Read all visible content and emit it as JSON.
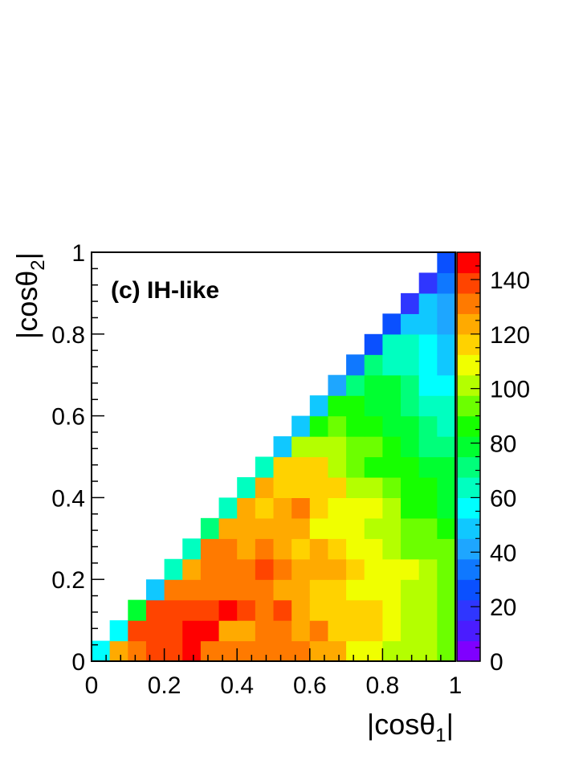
{
  "chart_data": {
    "type": "heatmap",
    "title": "",
    "annotation": "(c) IH-like",
    "xlabel": "|cosθ1|",
    "ylabel": "|cosθ2|",
    "xlim": [
      0,
      1
    ],
    "ylim": [
      0,
      1
    ],
    "x_ticks": [
      "0",
      "0.2",
      "0.4",
      "0.6",
      "0.8",
      "1"
    ],
    "y_ticks": [
      "0",
      "0.2",
      "0.4",
      "0.6",
      "0.8",
      "1"
    ],
    "bins": 20,
    "colorbar": {
      "range": [
        0,
        150
      ],
      "ticks": [
        "0",
        "20",
        "40",
        "60",
        "80",
        "100",
        "120",
        "140"
      ],
      "colors": [
        "#7f00ff",
        "#4a1cff",
        "#2f36ff",
        "#0a50ff",
        "#0f78ff",
        "#1ea6ff",
        "#10c8ff",
        "#00ffff",
        "#00ffc0",
        "#00ff7a",
        "#00ff30",
        "#16ff00",
        "#6cff00",
        "#b4ff00",
        "#f0ff00",
        "#ffd200",
        "#ffaa00",
        "#ff7a00",
        "#ff4400",
        "#ff0000"
      ]
    },
    "rows": [
      [
        55,
        120,
        132,
        140,
        138,
        143,
        132,
        130,
        128,
        130,
        130,
        128,
        123,
        120,
        110,
        110,
        104,
        102,
        98,
        94
      ],
      [
        null,
        58,
        140,
        140,
        135,
        144,
        143,
        125,
        126,
        128,
        128,
        122,
        130,
        118,
        117,
        116,
        110,
        104,
        100,
        94
      ],
      [
        null,
        null,
        75,
        138,
        140,
        135,
        142,
        143,
        141,
        131,
        135,
        125,
        118,
        116,
        116,
        113,
        112,
        102,
        100,
        94
      ],
      [
        null,
        null,
        null,
        52,
        132,
        132,
        133,
        132,
        134,
        130,
        126,
        122,
        114,
        114,
        112,
        112,
        110,
        103,
        100,
        96
      ],
      [
        null,
        null,
        null,
        null,
        66,
        122,
        128,
        130,
        134,
        140,
        130,
        125,
        124,
        122,
        114,
        110,
        110,
        106,
        100,
        94
      ],
      [
        null,
        null,
        null,
        null,
        null,
        62,
        132,
        130,
        122,
        128,
        124,
        118,
        120,
        114,
        110,
        106,
        102,
        96,
        92,
        90
      ],
      [
        null,
        null,
        null,
        null,
        null,
        null,
        68,
        124,
        124,
        124,
        124,
        124,
        112,
        112,
        108,
        104,
        100,
        96,
        90,
        86
      ],
      [
        null,
        null,
        null,
        null,
        null,
        null,
        null,
        66,
        122,
        118,
        124,
        130,
        114,
        112,
        110,
        110,
        100,
        86,
        84,
        80
      ],
      [
        null,
        null,
        null,
        null,
        null,
        null,
        null,
        null,
        66,
        120,
        118,
        116,
        116,
        118,
        102,
        102,
        94,
        86,
        84,
        80
      ],
      [
        null,
        null,
        null,
        null,
        null,
        null,
        null,
        null,
        null,
        60,
        117,
        115,
        116,
        98,
        96,
        88,
        86,
        84,
        78,
        76
      ],
      [
        null,
        null,
        null,
        null,
        null,
        null,
        null,
        null,
        null,
        null,
        52,
        104,
        102,
        102,
        96,
        92,
        86,
        78,
        72,
        68
      ],
      [
        null,
        null,
        null,
        null,
        null,
        null,
        null,
        null,
        null,
        null,
        null,
        50,
        86,
        90,
        88,
        84,
        76,
        76,
        70,
        66
      ],
      [
        null,
        null,
        null,
        null,
        null,
        null,
        null,
        null,
        null,
        null,
        null,
        null,
        48,
        84,
        84,
        82,
        76,
        72,
        66,
        64
      ],
      [
        null,
        null,
        null,
        null,
        null,
        null,
        null,
        null,
        null,
        null,
        null,
        null,
        null,
        40,
        74,
        80,
        82,
        70,
        58,
        58
      ],
      [
        null,
        null,
        null,
        null,
        null,
        null,
        null,
        null,
        null,
        null,
        null,
        null,
        null,
        null,
        36,
        68,
        66,
        64,
        58,
        52
      ],
      [
        null,
        null,
        null,
        null,
        null,
        null,
        null,
        null,
        null,
        null,
        null,
        null,
        null,
        null,
        null,
        28,
        64,
        60,
        56,
        52
      ],
      [
        null,
        null,
        null,
        null,
        null,
        null,
        null,
        null,
        null,
        null,
        null,
        null,
        null,
        null,
        null,
        null,
        28,
        50,
        52,
        44
      ],
      [
        null,
        null,
        null,
        null,
        null,
        null,
        null,
        null,
        null,
        null,
        null,
        null,
        null,
        null,
        null,
        null,
        null,
        22,
        46,
        44
      ],
      [
        null,
        null,
        null,
        null,
        null,
        null,
        null,
        null,
        null,
        null,
        null,
        null,
        null,
        null,
        null,
        null,
        null,
        null,
        20,
        36
      ],
      [
        null,
        null,
        null,
        null,
        null,
        null,
        null,
        null,
        null,
        null,
        null,
        null,
        null,
        null,
        null,
        null,
        null,
        null,
        null,
        24
      ]
    ]
  }
}
